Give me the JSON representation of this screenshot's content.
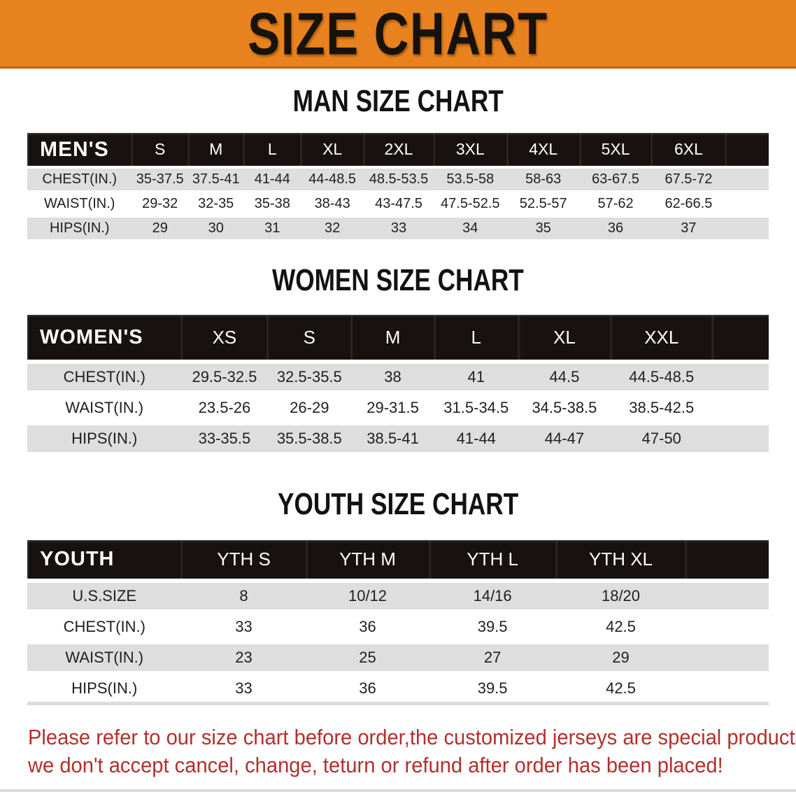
{
  "banner": {
    "title": "SIZE CHART"
  },
  "sections": [
    {
      "heading": "MAN SIZE CHART",
      "table": {
        "header_label": "MEN'S",
        "columns": [
          "S",
          "M",
          "L",
          "XL",
          "2XL",
          "3XL",
          "4XL",
          "5XL",
          "6XL"
        ],
        "rows": [
          {
            "label": "CHEST(IN.)",
            "values": [
              "35-37.5",
              "37.5-41",
              "41-44",
              "44-48.5",
              "48.5-53.5",
              "53.5-58",
              "58-63",
              "63-67.5",
              "67.5-72"
            ]
          },
          {
            "label": "WAIST(IN.)",
            "values": [
              "29-32",
              "32-35",
              "35-38",
              "38-43",
              "43-47.5",
              "47.5-52.5",
              "52.5-57",
              "57-62",
              "62-66.5"
            ]
          },
          {
            "label": "HIPS(IN.)",
            "values": [
              "29",
              "30",
              "31",
              "32",
              "33",
              "34",
              "35",
              "36",
              "37"
            ]
          }
        ]
      }
    },
    {
      "heading": "WOMEN SIZE CHART",
      "table": {
        "header_label": "WOMEN'S",
        "columns": [
          "XS",
          "S",
          "M",
          "L",
          "XL",
          "XXL"
        ],
        "rows": [
          {
            "label": "CHEST(IN.)",
            "values": [
              "29.5-32.5",
              "32.5-35.5",
              "38",
              "41",
              "44.5",
              "44.5-48.5"
            ]
          },
          {
            "label": "WAIST(IN.)",
            "values": [
              "23.5-26",
              "26-29",
              "29-31.5",
              "31.5-34.5",
              "34.5-38.5",
              "38.5-42.5"
            ]
          },
          {
            "label": "HIPS(IN.)",
            "values": [
              "33-35.5",
              "35.5-38.5",
              "38.5-41",
              "41-44",
              "44-47",
              "47-50"
            ]
          }
        ]
      }
    },
    {
      "heading": "YOUTH SIZE CHART",
      "table": {
        "header_label": "YOUTH",
        "columns": [
          "YTH S",
          "YTH M",
          "YTH L",
          "YTH XL"
        ],
        "rows": [
          {
            "label": "U.S.SIZE",
            "values": [
              "8",
              "10/12",
              "14/16",
              "18/20"
            ]
          },
          {
            "label": "CHEST(IN.)",
            "values": [
              "33",
              "36",
              "39.5",
              "42.5"
            ]
          },
          {
            "label": "WAIST(IN.)",
            "values": [
              "23",
              "25",
              "27",
              "29"
            ]
          },
          {
            "label": "HIPS(IN.)",
            "values": [
              "33",
              "36",
              "39.5",
              "42.5"
            ]
          }
        ]
      }
    }
  ],
  "disclaimer": {
    "lines": [
      "Please refer to our size chart before order,the customized jerseys are special products,",
      "we don't accept cancel, change, teturn or refund after order has been placed!"
    ]
  },
  "colors": {
    "banner_bg": "#E8821E",
    "banner_border": "#BC6410",
    "header_bar": "#17120F",
    "row_alt": "#DEDEDE",
    "text": "#1C1C1C",
    "disclaimer": "#B2302C"
  }
}
